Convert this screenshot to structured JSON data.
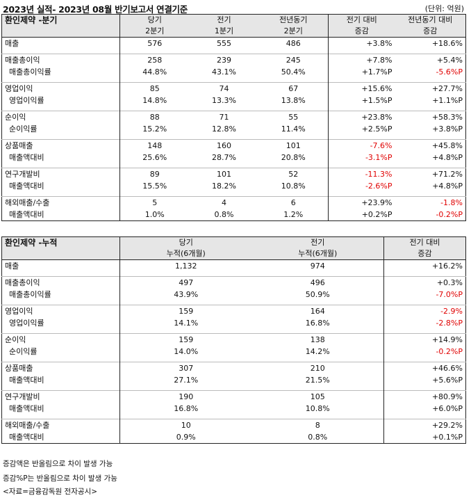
{
  "title": "2023년 실적- 2023년 08월 반기보고서 연결기준",
  "unit": "(단위: 억원)",
  "quarter": {
    "label": "환인제약 -분기",
    "headers": [
      [
        "당기",
        "2분기"
      ],
      [
        "전기",
        "1분기"
      ],
      [
        "전년동기",
        "2분기"
      ],
      [
        "전기 대비",
        "증감"
      ],
      [
        "전년동기 대비",
        "증감"
      ]
    ],
    "groups": [
      {
        "rows": [
          {
            "name": "매출",
            "vals": [
              "576",
              "555",
              "486"
            ],
            "d1": "+3.8%",
            "d2": "+18.6%"
          }
        ]
      },
      {
        "rows": [
          {
            "name": "매출총이익",
            "vals": [
              "258",
              "239",
              "245"
            ],
            "d1": "+7.8%",
            "d2": "+5.4%"
          },
          {
            "name": "매출총이익률",
            "vals": [
              "44.8%",
              "43.1%",
              "50.4%"
            ],
            "d1": "+1.7%P",
            "d2": "-5.6%P"
          }
        ]
      },
      {
        "rows": [
          {
            "name": "영업이익",
            "vals": [
              "85",
              "74",
              "67"
            ],
            "d1": "+15.6%",
            "d2": "+27.7%"
          },
          {
            "name": "영업이익률",
            "vals": [
              "14.8%",
              "13.3%",
              "13.8%"
            ],
            "d1": "+1.5%P",
            "d2": "+1.1%P"
          }
        ]
      },
      {
        "rows": [
          {
            "name": "순이익",
            "vals": [
              "88",
              "71",
              "55"
            ],
            "d1": "+23.8%",
            "d2": "+58.3%"
          },
          {
            "name": "순이익률",
            "vals": [
              "15.2%",
              "12.8%",
              "11.4%"
            ],
            "d1": "+2.5%P",
            "d2": "+3.8%P"
          }
        ]
      },
      {
        "rows": [
          {
            "name": "상품매출",
            "vals": [
              "148",
              "160",
              "101"
            ],
            "d1": "-7.6%",
            "d2": "+45.8%"
          },
          {
            "name": "매출액대비",
            "vals": [
              "25.6%",
              "28.7%",
              "20.8%"
            ],
            "d1": "-3.1%P",
            "d2": "+4.8%P"
          }
        ]
      },
      {
        "rows": [
          {
            "name": "연구개발비",
            "vals": [
              "89",
              "101",
              "52"
            ],
            "d1": "-11.3%",
            "d2": "+71.2%"
          },
          {
            "name": "매출액대비",
            "vals": [
              "15.5%",
              "18.2%",
              "10.8%"
            ],
            "d1": "-2.6%P",
            "d2": "+4.8%P"
          }
        ]
      },
      {
        "rows": [
          {
            "name": "해외매출/수출",
            "vals": [
              "5",
              "4",
              "6"
            ],
            "d1": "+23.9%",
            "d2": "-1.8%"
          },
          {
            "name": "매출액대비",
            "vals": [
              "1.0%",
              "0.8%",
              "1.2%"
            ],
            "d1": "+0.2%P",
            "d2": "-0.2%P"
          }
        ]
      }
    ]
  },
  "cumulative": {
    "label": "환인제약 -누적",
    "headers": [
      [
        "당기",
        "누적(6개월)"
      ],
      [
        "전기",
        "누적(6개월)"
      ],
      [
        "전기 대비",
        "증감"
      ]
    ],
    "groups": [
      {
        "rows": [
          {
            "name": "매출",
            "vals": [
              "1,132",
              "974"
            ],
            "d1": "+16.2%"
          }
        ]
      },
      {
        "rows": [
          {
            "name": "매출총이익",
            "vals": [
              "497",
              "496"
            ],
            "d1": "+0.3%"
          },
          {
            "name": "매출총이익률",
            "vals": [
              "43.9%",
              "50.9%"
            ],
            "d1": "-7.0%P"
          }
        ]
      },
      {
        "rows": [
          {
            "name": "영업이익",
            "vals": [
              "159",
              "164"
            ],
            "d1": "-2.9%"
          },
          {
            "name": "영업이익률",
            "vals": [
              "14.1%",
              "16.8%"
            ],
            "d1": "-2.8%P"
          }
        ]
      },
      {
        "rows": [
          {
            "name": "순이익",
            "vals": [
              "159",
              "138"
            ],
            "d1": "+14.9%"
          },
          {
            "name": "순이익률",
            "vals": [
              "14.0%",
              "14.2%"
            ],
            "d1": "-0.2%P"
          }
        ]
      },
      {
        "rows": [
          {
            "name": "상품매출",
            "vals": [
              "307",
              "210"
            ],
            "d1": "+46.6%"
          },
          {
            "name": "매출액대비",
            "vals": [
              "27.1%",
              "21.5%"
            ],
            "d1": "+5.6%P"
          }
        ]
      },
      {
        "rows": [
          {
            "name": "연구개발비",
            "vals": [
              "190",
              "105"
            ],
            "d1": "+80.9%"
          },
          {
            "name": "매출액대비",
            "vals": [
              "16.8%",
              "10.8%"
            ],
            "d1": "+6.0%P"
          }
        ]
      },
      {
        "rows": [
          {
            "name": "해외매출/수출",
            "vals": [
              "10",
              "8"
            ],
            "d1": "+29.2%"
          },
          {
            "name": "매출액대비",
            "vals": [
              "0.9%",
              "0.8%"
            ],
            "d1": "+0.1%P"
          }
        ]
      }
    ]
  },
  "footnotes": [
    "증감액은 반올림으로 차이 발생 가능",
    "증감%P는 반올림으로 차이 발생 가능",
    "<자료=금융감독원 전자공시>"
  ],
  "colors": {
    "negative": "#e00000",
    "header_bg": "#e6e6e6"
  }
}
